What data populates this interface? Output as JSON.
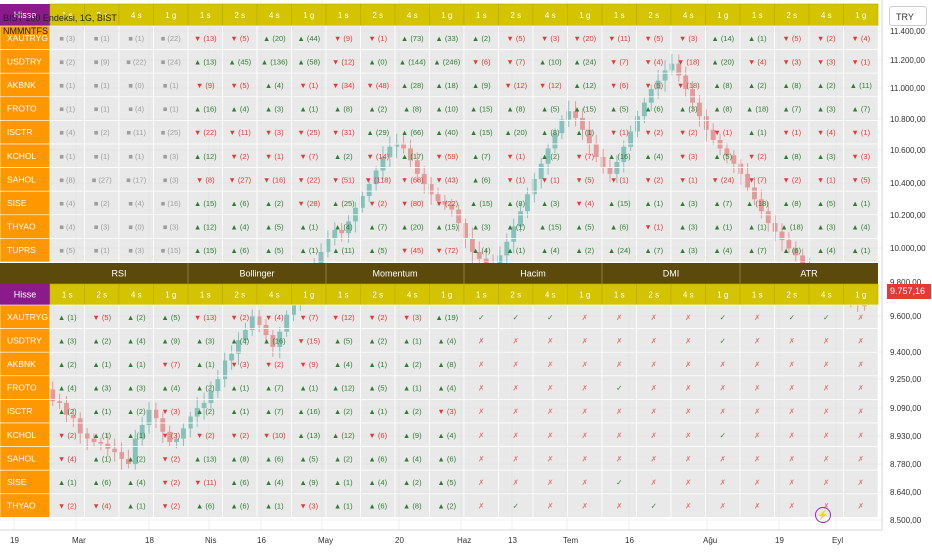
{
  "chart": {
    "title": "BIST 100 Endeksi, 1G, BIST",
    "indicator_short": "NMMNTFS",
    "currency": "TRY",
    "last_price": "9.757,16",
    "y_ticks": [
      "11.400,00",
      "11.200,00",
      "11.000,00",
      "10.800,00",
      "10.600,00",
      "10.400,00",
      "10.200,00",
      "10.000,00",
      "9.800,00",
      "9.600,00",
      "9.400,00",
      "9.250,00",
      "9.090,00",
      "8.930,00",
      "8.780,00",
      "8.640,00",
      "8.500,00"
    ],
    "x_ticks": [
      "19",
      "Mar",
      "18",
      "Nis",
      "16",
      "May",
      "20",
      "Haz",
      "13",
      "Tem",
      "16",
      "Ağu",
      "19",
      "Eyl"
    ],
    "colors": {
      "up": "#26a69a",
      "down": "#ef5350"
    }
  },
  "chart_data": {
    "type": "candlestick",
    "title": "BIST 100 Endeksi, 1G, BIST",
    "ylim": [
      8500,
      11400
    ],
    "close": [
      9380,
      9330,
      9410,
      9360,
      9300,
      9270,
      9200,
      9190,
      9120,
      9100,
      9010,
      8980,
      8960,
      8950,
      8920,
      8900,
      8860,
      8830,
      8980,
      9060,
      9150,
      9100,
      9020,
      8960,
      8980,
      9040,
      9110,
      9160,
      9190,
      9260,
      9330,
      9440,
      9480,
      9560,
      9620,
      9700,
      9650,
      9590,
      9520,
      9610,
      9710,
      9780,
      9860,
      9920,
      9990,
      10080,
      10160,
      10210,
      10190,
      10260,
      10340,
      10410,
      10480,
      10560,
      10640,
      10700,
      10720,
      10690,
      10620,
      10540,
      10480,
      10420,
      10380,
      10360,
      10330,
      10250,
      10160,
      10080,
      10040,
      10010,
      9990,
      10060,
      10140,
      10230,
      10320,
      10420,
      10510,
      10600,
      10690,
      10780,
      10860,
      10910,
      10870,
      10800,
      10720,
      10640,
      10580,
      10540,
      10610,
      10700,
      10790,
      10880,
      10960,
      11040,
      11090,
      11150,
      11190,
      11120,
      11040,
      10960,
      10880,
      10800,
      10740,
      10690,
      10650,
      10600,
      10540,
      10460,
      10390,
      10320,
      10250,
      10200,
      10150,
      10100,
      10060,
      10010,
      9980,
      9950,
      9920,
      9890,
      9860,
      9840,
      9810,
      9790,
      9760
    ]
  },
  "panel1": {
    "header_label": "Hisse",
    "timeframes": [
      "1 s",
      "2 s",
      "4 s",
      "1 g",
      "1 s",
      "2 s",
      "4 s",
      "1 g",
      "1 s",
      "2 s",
      "4 s",
      "1 g",
      "1 s",
      "2 s",
      "4 s",
      "1 g",
      "1 s",
      "2 s",
      "4 s",
      "1 g",
      "1 s",
      "2 s",
      "4 s",
      "1 g"
    ],
    "rows": [
      {
        "symbol": "XAUTRYG",
        "cells": [
          "■ (3)",
          "■ (1)",
          "■ (1)",
          "■ (22)",
          "▼ (13)",
          "▼ (5)",
          "▲ (20)",
          "▲ (44)",
          "▼ (9)",
          "▼ (1)",
          "▲ (73)",
          "▲ (33)",
          "▲ (2)",
          "▼ (5)",
          "▼ (3)",
          "▼ (20)",
          "▼ (11)",
          "▼ (5)",
          "▼ (3)",
          "▲ (14)",
          "▲ (1)",
          "▼ (5)",
          "▼ (2)",
          "▼ (4)"
        ]
      },
      {
        "symbol": "USDTRY",
        "cells": [
          "■ (2)",
          "■ (9)",
          "■ (22)",
          "■ (24)",
          "▲ (13)",
          "▲ (45)",
          "▲ (136)",
          "▲ (58)",
          "▼ (12)",
          "▲ (0)",
          "▲ (144)",
          "▲ (246)",
          "▼ (6)",
          "▼ (7)",
          "▲ (10)",
          "▲ (24)",
          "▼ (7)",
          "▼ (4)",
          "▼ (18)",
          "▲ (20)",
          "▼ (4)",
          "▼ (3)",
          "▼ (3)",
          "▼ (1)"
        ]
      },
      {
        "symbol": "AKBNK",
        "cells": [
          "■ (1)",
          "■ (1)",
          "■ (0)",
          "■ (1)",
          "▼ (9)",
          "▼ (5)",
          "▲ (4)",
          "▼ (1)",
          "▼ (34)",
          "▼ (48)",
          "▲ (28)",
          "▲ (18)",
          "▲ (9)",
          "▼ (12)",
          "▼ (12)",
          "▲ (12)",
          "▼ (6)",
          "▼ (5)",
          "▼ (18)",
          "▲ (8)",
          "▲ (2)",
          "▲ (8)",
          "▲ (2)",
          "▲ (11)"
        ]
      },
      {
        "symbol": "FROTO",
        "cells": [
          "■ (1)",
          "■ (1)",
          "■ (4)",
          "■ (1)",
          "▲ (16)",
          "▲ (4)",
          "▲ (3)",
          "▲ (1)",
          "▲ (8)",
          "▲ (2)",
          "▲ (8)",
          "▲ (10)",
          "▲ (15)",
          "▲ (8)",
          "▲ (5)",
          "▲ (15)",
          "▲ (5)",
          "▲ (6)",
          "▲ (3)",
          "▲ (8)",
          "▲ (18)",
          "▲ (7)",
          "▲ (3)",
          "▲ (7)"
        ]
      },
      {
        "symbol": "ISCTR",
        "cells": [
          "■ (4)",
          "■ (2)",
          "■ (11)",
          "■ (25)",
          "▼ (22)",
          "▼ (11)",
          "▼ (3)",
          "▼ (25)",
          "▼ (31)",
          "▲ (29)",
          "▲ (66)",
          "▲ (40)",
          "▲ (15)",
          "▲ (20)",
          "▲ (8)",
          "▲ (1)",
          "▼ (1)",
          "▼ (2)",
          "▼ (2)",
          "▼ (1)",
          "▲ (1)",
          "▼ (1)",
          "▼ (4)",
          "▼ (1)"
        ]
      },
      {
        "symbol": "KCHOL",
        "cells": [
          "■ (1)",
          "■ (1)",
          "■ (1)",
          "■ (3)",
          "▲ (12)",
          "▼ (2)",
          "▼ (1)",
          "▼ (7)",
          "▲ (2)",
          "▼ (14)",
          "▲ (17)",
          "▼ (59)",
          "▲ (7)",
          "▼ (1)",
          "▲ (2)",
          "▼ (7)",
          "▲ (16)",
          "▲ (4)",
          "▼ (3)",
          "▲ (5)",
          "▼ (2)",
          "▲ (8)",
          "▲ (3)",
          "▼ (3)"
        ]
      },
      {
        "symbol": "SAHOL",
        "cells": [
          "■ (8)",
          "■ (27)",
          "■ (17)",
          "■ (3)",
          "▼ (8)",
          "▼ (27)",
          "▼ (16)",
          "▼ (22)",
          "▼ (51)",
          "▼ (118)",
          "▼ (68)",
          "▼ (43)",
          "▲ (6)",
          "▼ (1)",
          "▼ (1)",
          "▼ (5)",
          "▼ (1)",
          "▼ (2)",
          "▼ (1)",
          "▼ (24)",
          "▼ (7)",
          "▼ (2)",
          "▼ (1)",
          "▼ (5)"
        ]
      },
      {
        "symbol": "SISE",
        "cells": [
          "■ (4)",
          "■ (2)",
          "■ (4)",
          "■ (16)",
          "▲ (15)",
          "▲ (6)",
          "▲ (2)",
          "▼ (28)",
          "▲ (25)",
          "▼ (2)",
          "▼ (80)",
          "▼ (22)",
          "▲ (15)",
          "▲ (8)",
          "▲ (3)",
          "▼ (4)",
          "▲ (15)",
          "▲ (1)",
          "▲ (3)",
          "▲ (7)",
          "▲ (18)",
          "▲ (8)",
          "▲ (5)",
          "▲ (1)"
        ]
      },
      {
        "symbol": "THYAO",
        "cells": [
          "■ (4)",
          "■ (3)",
          "■ (0)",
          "■ (3)",
          "▲ (12)",
          "▲ (4)",
          "▲ (5)",
          "▲ (1)",
          "▲ (4)",
          "▲ (7)",
          "▲ (20)",
          "▲ (15)",
          "▲ (3)",
          "▲ (1)",
          "▲ (15)",
          "▲ (5)",
          "▲ (6)",
          "▼ (1)",
          "▲ (3)",
          "▲ (1)",
          "▲ (1)",
          "▲ (18)",
          "▲ (3)",
          "▲ (4)"
        ]
      },
      {
        "symbol": "TUPRS",
        "cells": [
          "■ (5)",
          "■ (1)",
          "■ (3)",
          "■ (15)",
          "▲ (15)",
          "▲ (6)",
          "▲ (5)",
          "▲ (1)",
          "▲ (11)",
          "▲ (5)",
          "▼ (45)",
          "▼ (72)",
          "▲ (4)",
          "▲ (1)",
          "▲ (4)",
          "▲ (2)",
          "▲ (24)",
          "▲ (7)",
          "▲ (3)",
          "▲ (4)",
          "▲ (7)",
          "▲ (6)",
          "▲ (4)",
          "▲ (1)"
        ]
      }
    ]
  },
  "panel2": {
    "header_label": "Hisse",
    "groups": [
      "RSI",
      "Bollinger",
      "Momentum",
      "Hacim",
      "DMI",
      "ATR"
    ],
    "timeframes": [
      "1 s",
      "2 s",
      "4 s",
      "1 g",
      "1 s",
      "2 s",
      "4 s",
      "1 g",
      "1 s",
      "2 s",
      "4 s",
      "1 g",
      "1 s",
      "2 s",
      "4 s",
      "1 g",
      "1 s",
      "2 s",
      "4 s",
      "1 g",
      "1 s",
      "2 s",
      "4 s",
      "1 g"
    ],
    "rows": [
      {
        "symbol": "XAUTRYG",
        "cells": [
          "▲ (1)",
          "▼ (5)",
          "▲ (2)",
          "▲ (5)",
          "▼ (13)",
          "▼ (2)",
          "▼ (4)",
          "▼ (7)",
          "▼ (12)",
          "▼ (2)",
          "▼ (3)",
          "▲ (19)",
          "✓",
          "✓",
          "✓",
          "✗",
          "✗",
          "✗",
          "✗",
          "✓",
          "✗",
          "✓",
          "✓",
          "✗"
        ]
      },
      {
        "symbol": "USDTRY",
        "cells": [
          "▲ (3)",
          "▲ (2)",
          "▲ (4)",
          "▲ (9)",
          "▲ (3)",
          "▲ (4)",
          "▲ (16)",
          "▼ (15)",
          "▲ (5)",
          "▲ (2)",
          "▲ (1)",
          "▲ (4)",
          "✗",
          "✗",
          "✗",
          "✗",
          "✗",
          "✗",
          "✗",
          "✓",
          "✗",
          "✗",
          "✗",
          "✗"
        ]
      },
      {
        "symbol": "AKBNK",
        "cells": [
          "▲ (2)",
          "▲ (1)",
          "▲ (1)",
          "▼ (7)",
          "▲ (1)",
          "▼ (3)",
          "▼ (2)",
          "▼ (9)",
          "▲ (4)",
          "▲ (1)",
          "▲ (2)",
          "▲ (8)",
          "✗",
          "✗",
          "✗",
          "✗",
          "✗",
          "✗",
          "✗",
          "✗",
          "✗",
          "✗",
          "✗",
          "✗"
        ]
      },
      {
        "symbol": "FROTO",
        "cells": [
          "▲ (4)",
          "▲ (3)",
          "▲ (3)",
          "▲ (4)",
          "▲ (2)",
          "▲ (1)",
          "▲ (7)",
          "▲ (1)",
          "▲ (12)",
          "▲ (5)",
          "▲ (1)",
          "▲ (4)",
          "✗",
          "✗",
          "✗",
          "✗",
          "✓",
          "✗",
          "✗",
          "✗",
          "✗",
          "✗",
          "✗",
          "✗"
        ]
      },
      {
        "symbol": "ISCTR",
        "cells": [
          "▲ (2)",
          "▲ (1)",
          "▲ (2)",
          "▼ (3)",
          "▲ (2)",
          "▲ (1)",
          "▲ (7)",
          "▲ (16)",
          "▲ (2)",
          "▲ (1)",
          "▲ (2)",
          "▼ (3)",
          "✗",
          "✗",
          "✗",
          "✗",
          "✗",
          "✗",
          "✗",
          "✗",
          "✗",
          "✗",
          "✗",
          "✗"
        ]
      },
      {
        "symbol": "KCHOL",
        "cells": [
          "▼ (2)",
          "▲ (1)",
          "▲ (1)",
          "▼ (3)",
          "▼ (2)",
          "▼ (2)",
          "▼ (10)",
          "▲ (13)",
          "▲ (12)",
          "▼ (6)",
          "▲ (9)",
          "▲ (4)",
          "✗",
          "✗",
          "✗",
          "✗",
          "✗",
          "✗",
          "✗",
          "✓",
          "✗",
          "✗",
          "✗",
          "✗"
        ]
      },
      {
        "symbol": "SAHOL",
        "cells": [
          "▼ (4)",
          "▲ (1)",
          "▲ (2)",
          "▼ (2)",
          "▲ (13)",
          "▲ (8)",
          "▲ (6)",
          "▲ (5)",
          "▲ (2)",
          "▲ (6)",
          "▲ (4)",
          "▲ (6)",
          "✗",
          "✗",
          "✗",
          "✗",
          "✗",
          "✗",
          "✗",
          "✗",
          "✗",
          "✗",
          "✗",
          "✗"
        ]
      },
      {
        "symbol": "SISE",
        "cells": [
          "▲ (1)",
          "▲ (6)",
          "▲ (4)",
          "▼ (2)",
          "▼ (11)",
          "▲ (6)",
          "▲ (4)",
          "▲ (9)",
          "▲ (1)",
          "▲ (4)",
          "▲ (2)",
          "▲ (5)",
          "✗",
          "✗",
          "✗",
          "✗",
          "✓",
          "✗",
          "✗",
          "✗",
          "✗",
          "✗",
          "✗",
          "✗"
        ]
      },
      {
        "symbol": "THYAO",
        "cells": [
          "▼ (2)",
          "▼ (4)",
          "▲ (1)",
          "▼ (2)",
          "▲ (6)",
          "▲ (6)",
          "▲ (1)",
          "▼ (3)",
          "▲ (1)",
          "▲ (6)",
          "▲ (8)",
          "▲ (2)",
          "✗",
          "✓",
          "✗",
          "✗",
          "✗",
          "✓",
          "✗",
          "✗",
          "✗",
          "✗",
          "✗",
          "✗"
        ]
      }
    ]
  }
}
